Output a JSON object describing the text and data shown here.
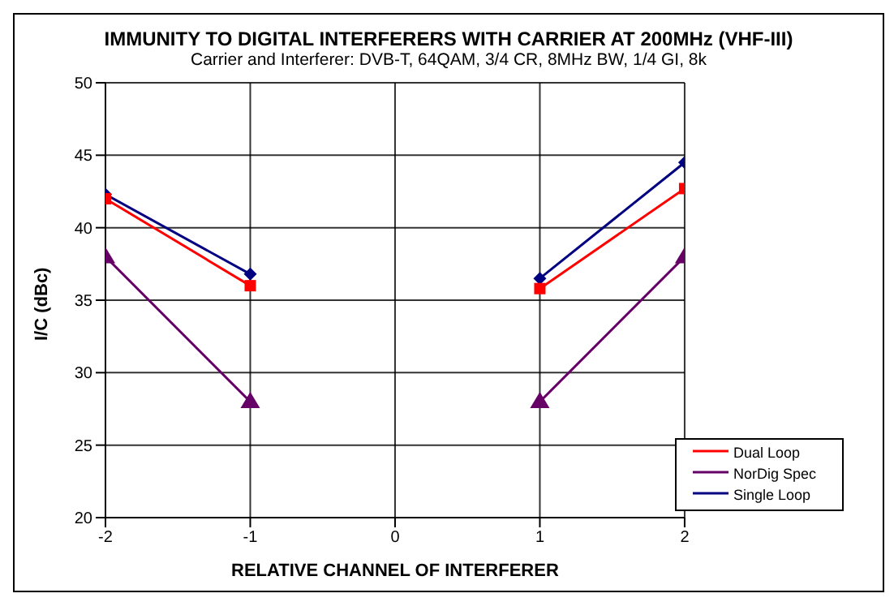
{
  "chart_data": {
    "type": "line",
    "title": "IMMUNITY TO DIGITAL INTERFERERS WITH CARRIER AT 200MHz (VHF-III)",
    "subtitle": "Carrier and Interferer: DVB-T, 64QAM, 3/4 CR, 8MHz BW, 1/4 GI, 8k",
    "xlabel": "RELATIVE CHANNEL OF INTERFERER",
    "ylabel": "I/C (dBc)",
    "x": [
      -2,
      -1,
      0,
      1,
      2
    ],
    "series": [
      {
        "name": "Single Loop",
        "color": "#000080",
        "marker": "diamond",
        "values": [
          42.3,
          36.8,
          null,
          36.5,
          44.5
        ]
      },
      {
        "name": "Dual Loop",
        "color": "#ff0000",
        "marker": "square",
        "values": [
          42,
          36,
          null,
          35.8,
          42.7
        ]
      },
      {
        "name": "NorDig Spec",
        "color": "#660066",
        "marker": "triangle",
        "values": [
          38,
          28,
          null,
          28,
          38
        ]
      }
    ],
    "xlim": [
      -2,
      2
    ],
    "xticks": [
      -2,
      -1,
      0,
      1,
      2
    ],
    "ylim": [
      20,
      50
    ],
    "yticks": [
      20,
      25,
      30,
      35,
      40,
      45,
      50
    ],
    "grid": true,
    "legend": "bottom right"
  }
}
